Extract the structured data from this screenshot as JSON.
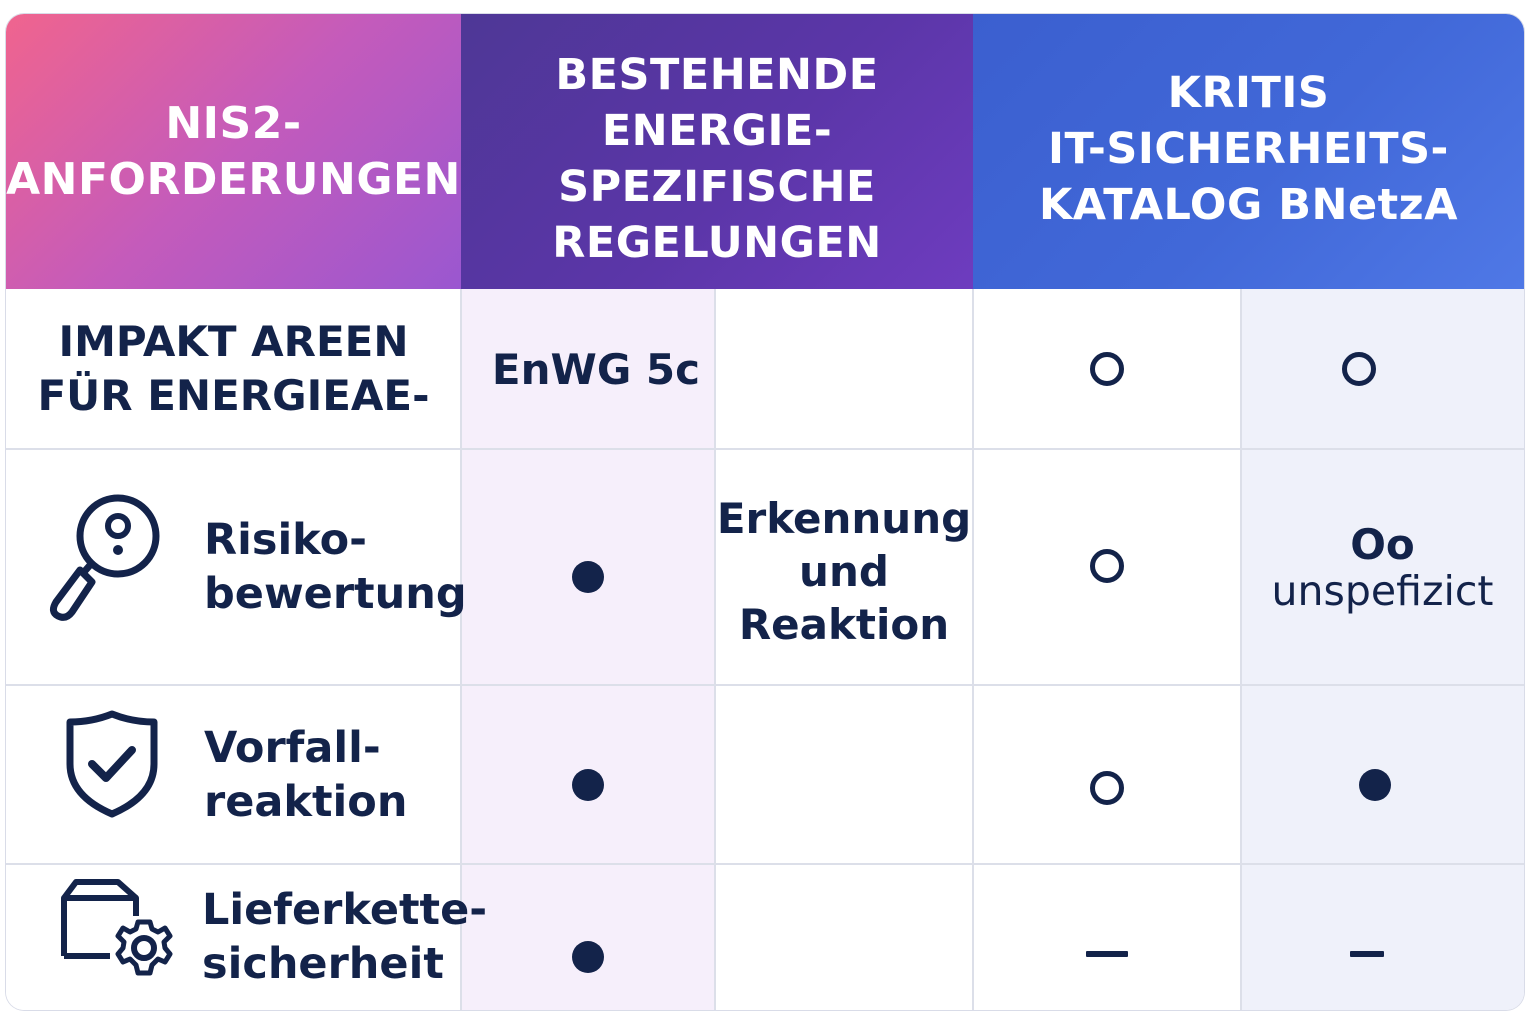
{
  "headers": {
    "col1": "NIS2-\nANFORDERUNGEN",
    "col2": "BESTEHENDE\nENERGIE-\nSPEZIFISCHE\nREGELUNGEN",
    "col3": "KRITIS\nIT-SICHERHEITS-\nKATALOG BNetzA"
  },
  "rows": {
    "impakt": {
      "title": "IMPAKT AREEN\nFÜR ENERGIEAE-",
      "enwg": "EnWG 5c",
      "marks": [
        "open",
        "open"
      ]
    },
    "risiko": {
      "label": "Risiko-\nbewertung",
      "icon": "magnifier-icon",
      "col2_mark": "filled",
      "col3_text": "Erkennung\nund\nReaktion",
      "col4_mark": "open",
      "col5_symbol": "Oo",
      "col5_text": "unspefizict"
    },
    "vorfall": {
      "label": "Vorfall-\nreaktion",
      "icon": "shield-check-icon",
      "col2_mark": "filled",
      "col4_mark": "open",
      "col5_mark": "filled"
    },
    "liefer": {
      "label": "Lieferkette-\nsicherheit",
      "icon": "box-gear-icon",
      "col2_mark": "filled",
      "col4_mark": "dash",
      "col5_mark": "dash"
    }
  },
  "colors": {
    "ink": "#13234a",
    "header_pink": "#f0648e",
    "header_purple": "#5b36a8",
    "header_blue": "#4168d8"
  }
}
